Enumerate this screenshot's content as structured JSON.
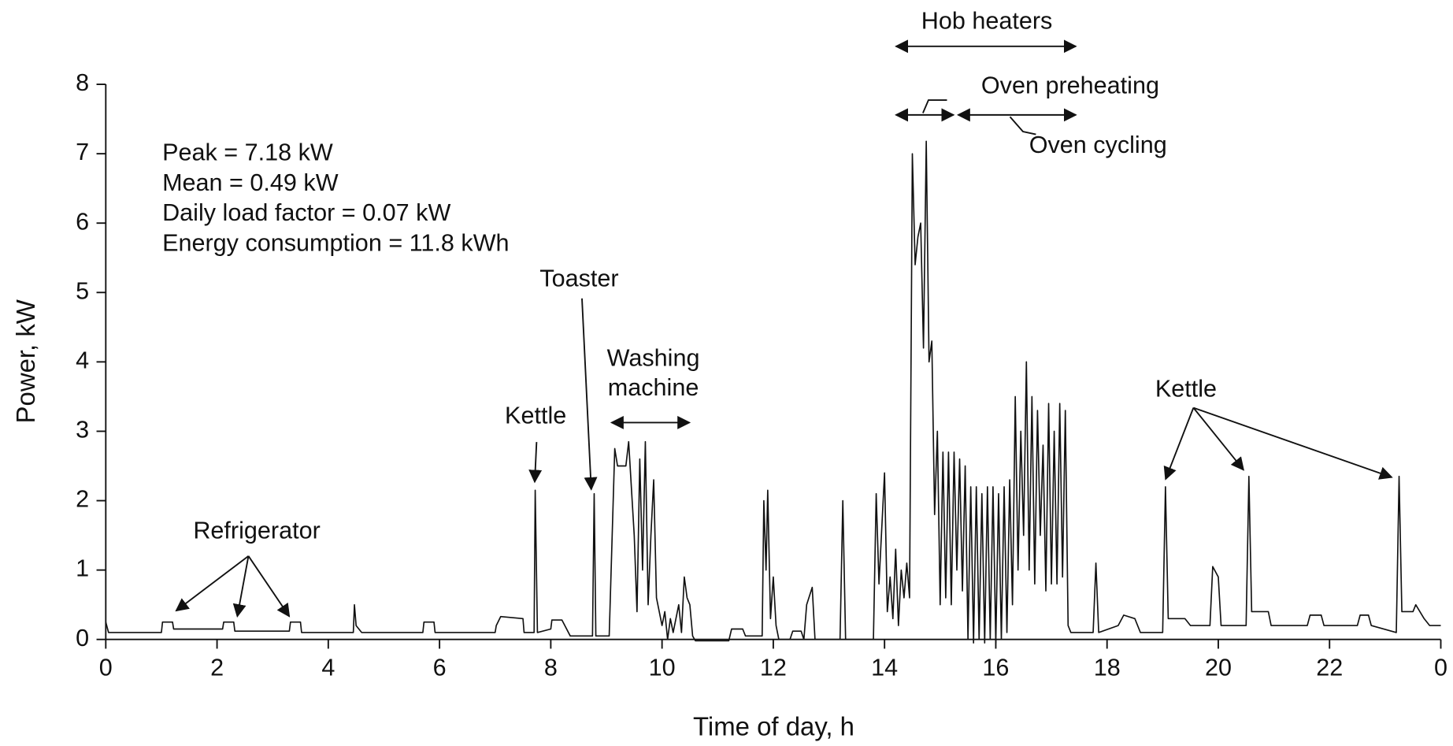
{
  "chart_data": {
    "type": "line",
    "xlabel": "Time of day, h",
    "ylabel": "Power, kW",
    "annotations": [
      "Peak = 7.18 kW",
      "Mean = 0.49 kW",
      "Daily load factor = 0.07 kW",
      "Energy consumption = 11.8 kWh",
      "Hob heaters",
      "Oven preheating",
      "Oven cycling",
      "Toaster",
      "Washing",
      "machine",
      "Kettle",
      "Refrigerator",
      "Kettle"
    ],
    "color": "#111111",
    "x": [
      0,
      0.05,
      1.0,
      1.02,
      1.2,
      1.22,
      2.1,
      2.12,
      2.3,
      2.32,
      3.3,
      3.32,
      3.5,
      3.52,
      4.45,
      4.47,
      4.5,
      4.6,
      5.7,
      5.72,
      5.9,
      5.92,
      7.0,
      7.02,
      7.1,
      7.5,
      7.52,
      7.7,
      7.72,
      7.76,
      8.0,
      8.02,
      8.2,
      8.35,
      8.75,
      8.78,
      8.81,
      9.05,
      9.15,
      9.2,
      9.35,
      9.4,
      9.5,
      9.55,
      9.6,
      9.65,
      9.7,
      9.75,
      9.8,
      9.85,
      9.9,
      10.0,
      10.05,
      10.1,
      10.15,
      10.2,
      10.3,
      10.35,
      10.4,
      10.45,
      10.5,
      10.55,
      10.6,
      11.2,
      11.25,
      11.45,
      11.5,
      11.8,
      11.83,
      11.87,
      11.9,
      11.95,
      12.0,
      12.05,
      12.1,
      12.3,
      12.35,
      12.5,
      12.55,
      12.6,
      12.7,
      12.75,
      13.2,
      13.25,
      13.3,
      13.8,
      13.85,
      13.9,
      13.95,
      14.0,
      14.05,
      14.1,
      14.15,
      14.2,
      14.25,
      14.3,
      14.35,
      14.4,
      14.45,
      14.5,
      14.55,
      14.6,
      14.65,
      14.7,
      14.75,
      14.8,
      14.85,
      14.9,
      14.95,
      15.0,
      15.05,
      15.1,
      15.15,
      15.2,
      15.25,
      15.3,
      15.35,
      15.4,
      15.45,
      15.5,
      15.55,
      15.6,
      15.65,
      15.7,
      15.75,
      15.8,
      15.85,
      15.9,
      15.95,
      16.0,
      16.05,
      16.1,
      16.15,
      16.2,
      16.25,
      16.3,
      16.35,
      16.4,
      16.45,
      16.5,
      16.55,
      16.6,
      16.65,
      16.7,
      16.75,
      16.8,
      16.85,
      16.9,
      16.95,
      17.0,
      17.05,
      17.1,
      17.15,
      17.2,
      17.25,
      17.3,
      17.35,
      17.75,
      17.8,
      17.85,
      18.2,
      18.3,
      18.5,
      18.6,
      19.0,
      19.05,
      19.1,
      19.4,
      19.5,
      19.85,
      19.9,
      20.0,
      20.05,
      20.5,
      20.55,
      20.6,
      20.9,
      20.95,
      21.6,
      21.65,
      21.85,
      21.9,
      22.5,
      22.55,
      22.7,
      22.75,
      23.2,
      23.25,
      23.3,
      23.5,
      23.55,
      23.7,
      23.8,
      24.0
    ],
    "values": [
      0.25,
      0.1,
      0.1,
      0.25,
      0.25,
      0.15,
      0.15,
      0.25,
      0.25,
      0.12,
      0.12,
      0.25,
      0.25,
      0.1,
      0.1,
      0.5,
      0.2,
      0.1,
      0.1,
      0.25,
      0.25,
      0.1,
      0.1,
      0.2,
      0.33,
      0.3,
      0.1,
      0.1,
      2.15,
      0.1,
      0.15,
      0.28,
      0.28,
      0.05,
      0.05,
      2.1,
      0.05,
      0.05,
      2.75,
      2.5,
      2.5,
      2.85,
      1.5,
      0.4,
      2.6,
      1.0,
      2.85,
      0.5,
      1.5,
      2.3,
      0.6,
      0.2,
      0.4,
      0,
      0.3,
      0.1,
      0.5,
      0.1,
      0.9,
      0.6,
      0.5,
      0.05,
      -0.02,
      -0.02,
      0.15,
      0.15,
      0.05,
      0.05,
      2.0,
      1.0,
      2.15,
      0.3,
      0.9,
      0.2,
      0,
      0,
      0.12,
      0.12,
      0,
      0.5,
      0.75,
      0,
      0,
      2.0,
      0,
      0,
      2.1,
      0.8,
      1.6,
      2.4,
      0.4,
      0.9,
      0.3,
      1.3,
      0.2,
      1.0,
      0.6,
      1.1,
      0.6,
      7.0,
      5.4,
      5.8,
      6.0,
      4.2,
      7.18,
      4.0,
      4.3,
      1.8,
      3.0,
      0.5,
      2.7,
      0.6,
      2.7,
      0.5,
      2.7,
      1.0,
      2.6,
      0.7,
      2.5,
      0,
      2.2,
      -0.05,
      2.2,
      0,
      2.1,
      -0.05,
      2.2,
      0,
      2.2,
      -0.05,
      2.1,
      0,
      2.2,
      0.1,
      2.3,
      0.5,
      3.5,
      1.0,
      3.0,
      1.5,
      4.0,
      1.0,
      3.5,
      0.8,
      3.3,
      1.5,
      2.8,
      0.7,
      3.4,
      0.8,
      3.0,
      0.8,
      3.4,
      0.9,
      3.3,
      0.2,
      0.1,
      0.1,
      1.1,
      0.1,
      0.2,
      0.35,
      0.3,
      0.1,
      0.1,
      2.2,
      0.3,
      0.3,
      0.2,
      0.2,
      1.05,
      0.9,
      0.2,
      0.2,
      2.35,
      0.4,
      0.4,
      0.2,
      0.2,
      0.35,
      0.35,
      0.2,
      0.2,
      0.35,
      0.35,
      0.2,
      0.1,
      2.35,
      0.4,
      0.4,
      0.5,
      0.3,
      0.2,
      0.2
    ],
    "xlim": [
      0,
      24
    ],
    "ylim": [
      0,
      8
    ],
    "xticks": [
      0,
      2,
      4,
      6,
      8,
      10,
      12,
      14,
      16,
      18,
      20,
      22,
      {
        "value": 24,
        "label": "0"
      }
    ],
    "yticks": [
      0,
      1,
      2,
      3,
      4,
      5,
      6,
      7,
      8
    ]
  }
}
